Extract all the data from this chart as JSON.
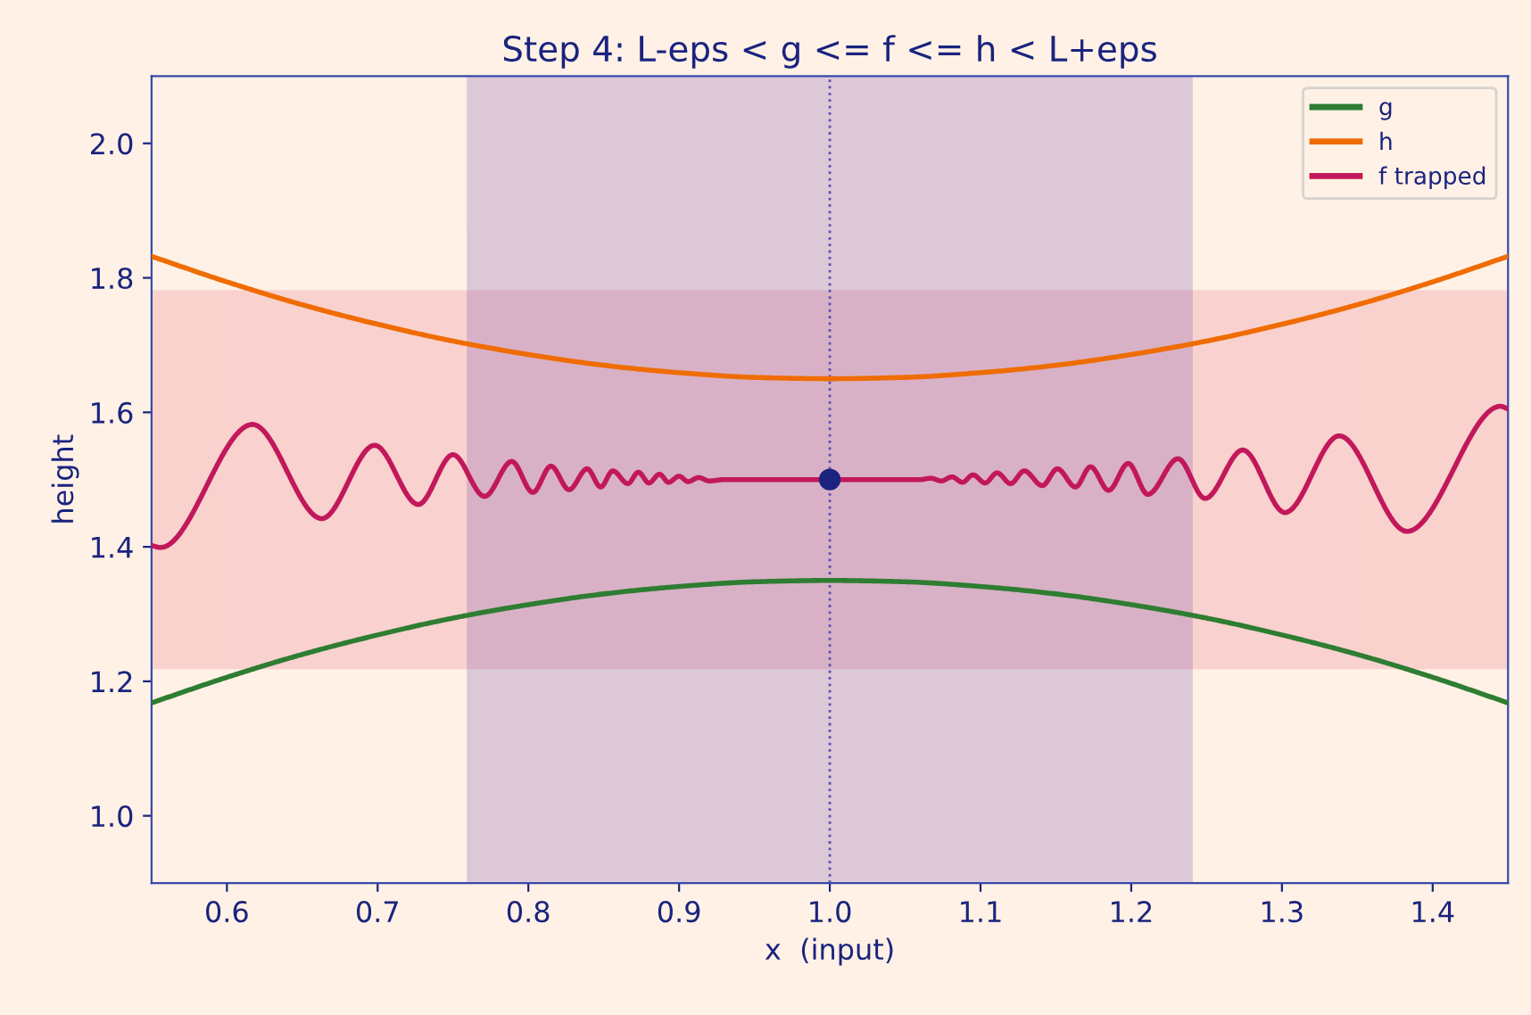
{
  "chart_data": {
    "type": "line",
    "title": "Step 4: L-eps < g <= f <= h < L+eps",
    "xlabel": "x  (input)",
    "ylabel": "height",
    "xlim": [
      0.55,
      1.45
    ],
    "ylim": [
      0.9,
      2.1
    ],
    "xticks": [
      0.6,
      0.7,
      0.8,
      0.9,
      {
        "value": 1,
        "label": "1.0"
      },
      1.1,
      1.2,
      1.3,
      1.4
    ],
    "yticks": [
      {
        "value": 1,
        "label": "1.0"
      },
      1.2,
      1.4,
      1.6,
      1.8,
      {
        "value": 2,
        "label": "2.0"
      }
    ],
    "grid": false,
    "legend": "top right",
    "series": [
      {
        "name": "g",
        "color": "#2e7d32",
        "x": [
          0.55,
          0.6,
          0.65,
          0.7,
          0.75,
          0.8,
          0.85,
          0.9,
          0.95,
          1.0,
          1.05,
          1.1,
          1.15,
          1.2,
          1.25,
          1.3,
          1.35,
          1.4,
          1.45
        ],
        "values": [
          1.168,
          1.206,
          1.24,
          1.269,
          1.294,
          1.314,
          1.33,
          1.341,
          1.348,
          1.35,
          1.348,
          1.341,
          1.33,
          1.314,
          1.294,
          1.269,
          1.24,
          1.206,
          1.168
        ]
      },
      {
        "name": "h",
        "color": "#ef6c00",
        "x": [
          0.55,
          0.6,
          0.65,
          0.7,
          0.75,
          0.8,
          0.85,
          0.9,
          0.95,
          1.0,
          1.05,
          1.1,
          1.15,
          1.2,
          1.25,
          1.3,
          1.35,
          1.4,
          1.45
        ],
        "values": [
          1.832,
          1.794,
          1.76,
          1.731,
          1.706,
          1.686,
          1.67,
          1.659,
          1.652,
          1.65,
          1.652,
          1.659,
          1.67,
          1.686,
          1.706,
          1.731,
          1.76,
          1.794,
          1.832
        ]
      },
      {
        "name": "f trapped",
        "color": "#c2185b",
        "x": [
          0.55,
          0.556,
          0.617,
          0.663,
          0.698,
          0.727,
          0.75,
          0.771,
          0.789,
          0.803,
          0.815,
          0.827,
          0.839,
          0.848,
          0.856,
          0.866,
          0.873,
          0.88,
          0.887,
          0.893,
          0.9,
          0.906,
          0.913,
          0.92,
          0.93,
          1.0,
          1.06,
          1.067,
          1.074,
          1.081,
          1.088,
          1.095,
          1.103,
          1.111,
          1.12,
          1.129,
          1.141,
          1.151,
          1.163,
          1.173,
          1.185,
          1.198,
          1.211,
          1.231,
          1.249,
          1.274,
          1.302,
          1.338,
          1.383,
          1.445,
          1.45
        ],
        "values": [
          1.402,
          1.399,
          1.582,
          1.442,
          1.551,
          1.463,
          1.537,
          1.475,
          1.527,
          1.481,
          1.52,
          1.485,
          1.516,
          1.489,
          1.513,
          1.494,
          1.511,
          1.495,
          1.508,
          1.496,
          1.505,
          1.497,
          1.503,
          1.498,
          1.5,
          1.5,
          1.5,
          1.502,
          1.498,
          1.504,
          1.496,
          1.507,
          1.495,
          1.51,
          1.494,
          1.513,
          1.491,
          1.516,
          1.489,
          1.519,
          1.484,
          1.524,
          1.478,
          1.531,
          1.472,
          1.544,
          1.451,
          1.565,
          1.423,
          1.609,
          1.605
        ]
      },
      {
        "type": "scatter",
        "color": "#1a237e",
        "x": [
          1.0
        ],
        "values": [
          1.5
        ],
        "marker": "circle"
      }
    ],
    "ref_lines": [
      {
        "axis": "x",
        "value": 1.0,
        "color": "#5c4fb0",
        "line_style": "dotted"
      }
    ],
    "bands": [
      {
        "axis": "y",
        "from": 1.22,
        "to": 1.78,
        "color": "#ec8a9a"
      },
      {
        "axis": "x",
        "from": 0.76,
        "to": 1.24,
        "color": "#8e6bb8"
      }
    ]
  }
}
